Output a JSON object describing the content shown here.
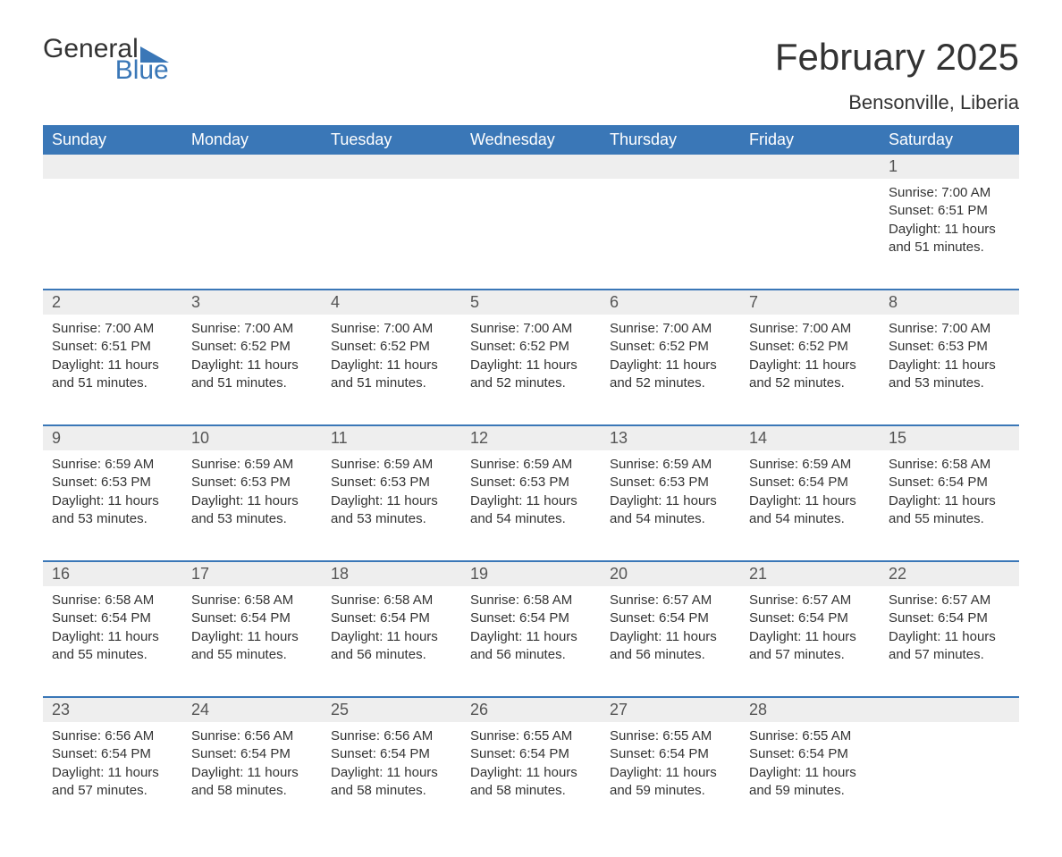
{
  "logo": {
    "word1": "General",
    "word2": "Blue"
  },
  "title": "February 2025",
  "location": "Bensonville, Liberia",
  "colors": {
    "header_bg": "#3a77b7",
    "header_text": "#ffffff",
    "daynum_bg": "#eeeeee",
    "text": "#333333",
    "logo_blue": "#3a77b7"
  },
  "typography": {
    "title_fontsize_pt": 32,
    "location_fontsize_pt": 16,
    "dayheader_fontsize_pt": 14,
    "daynum_fontsize_pt": 14,
    "body_fontsize_pt": 11
  },
  "layout": {
    "columns": 7,
    "week_border_color": "#3a77b7"
  },
  "day_headers": [
    "Sunday",
    "Monday",
    "Tuesday",
    "Wednesday",
    "Thursday",
    "Friday",
    "Saturday"
  ],
  "weeks": [
    {
      "days": [
        {
          "num": "",
          "lines": [
            "",
            "",
            "",
            ""
          ]
        },
        {
          "num": "",
          "lines": [
            "",
            "",
            "",
            ""
          ]
        },
        {
          "num": "",
          "lines": [
            "",
            "",
            "",
            ""
          ]
        },
        {
          "num": "",
          "lines": [
            "",
            "",
            "",
            ""
          ]
        },
        {
          "num": "",
          "lines": [
            "",
            "",
            "",
            ""
          ]
        },
        {
          "num": "",
          "lines": [
            "",
            "",
            "",
            ""
          ]
        },
        {
          "num": "1",
          "lines": [
            "Sunrise: 7:00 AM",
            "Sunset: 6:51 PM",
            "Daylight: 11 hours",
            "and 51 minutes."
          ]
        }
      ]
    },
    {
      "days": [
        {
          "num": "2",
          "lines": [
            "Sunrise: 7:00 AM",
            "Sunset: 6:51 PM",
            "Daylight: 11 hours",
            "and 51 minutes."
          ]
        },
        {
          "num": "3",
          "lines": [
            "Sunrise: 7:00 AM",
            "Sunset: 6:52 PM",
            "Daylight: 11 hours",
            "and 51 minutes."
          ]
        },
        {
          "num": "4",
          "lines": [
            "Sunrise: 7:00 AM",
            "Sunset: 6:52 PM",
            "Daylight: 11 hours",
            "and 51 minutes."
          ]
        },
        {
          "num": "5",
          "lines": [
            "Sunrise: 7:00 AM",
            "Sunset: 6:52 PM",
            "Daylight: 11 hours",
            "and 52 minutes."
          ]
        },
        {
          "num": "6",
          "lines": [
            "Sunrise: 7:00 AM",
            "Sunset: 6:52 PM",
            "Daylight: 11 hours",
            "and 52 minutes."
          ]
        },
        {
          "num": "7",
          "lines": [
            "Sunrise: 7:00 AM",
            "Sunset: 6:52 PM",
            "Daylight: 11 hours",
            "and 52 minutes."
          ]
        },
        {
          "num": "8",
          "lines": [
            "Sunrise: 7:00 AM",
            "Sunset: 6:53 PM",
            "Daylight: 11 hours",
            "and 53 minutes."
          ]
        }
      ]
    },
    {
      "days": [
        {
          "num": "9",
          "lines": [
            "Sunrise: 6:59 AM",
            "Sunset: 6:53 PM",
            "Daylight: 11 hours",
            "and 53 minutes."
          ]
        },
        {
          "num": "10",
          "lines": [
            "Sunrise: 6:59 AM",
            "Sunset: 6:53 PM",
            "Daylight: 11 hours",
            "and 53 minutes."
          ]
        },
        {
          "num": "11",
          "lines": [
            "Sunrise: 6:59 AM",
            "Sunset: 6:53 PM",
            "Daylight: 11 hours",
            "and 53 minutes."
          ]
        },
        {
          "num": "12",
          "lines": [
            "Sunrise: 6:59 AM",
            "Sunset: 6:53 PM",
            "Daylight: 11 hours",
            "and 54 minutes."
          ]
        },
        {
          "num": "13",
          "lines": [
            "Sunrise: 6:59 AM",
            "Sunset: 6:53 PM",
            "Daylight: 11 hours",
            "and 54 minutes."
          ]
        },
        {
          "num": "14",
          "lines": [
            "Sunrise: 6:59 AM",
            "Sunset: 6:54 PM",
            "Daylight: 11 hours",
            "and 54 minutes."
          ]
        },
        {
          "num": "15",
          "lines": [
            "Sunrise: 6:58 AM",
            "Sunset: 6:54 PM",
            "Daylight: 11 hours",
            "and 55 minutes."
          ]
        }
      ]
    },
    {
      "days": [
        {
          "num": "16",
          "lines": [
            "Sunrise: 6:58 AM",
            "Sunset: 6:54 PM",
            "Daylight: 11 hours",
            "and 55 minutes."
          ]
        },
        {
          "num": "17",
          "lines": [
            "Sunrise: 6:58 AM",
            "Sunset: 6:54 PM",
            "Daylight: 11 hours",
            "and 55 minutes."
          ]
        },
        {
          "num": "18",
          "lines": [
            "Sunrise: 6:58 AM",
            "Sunset: 6:54 PM",
            "Daylight: 11 hours",
            "and 56 minutes."
          ]
        },
        {
          "num": "19",
          "lines": [
            "Sunrise: 6:58 AM",
            "Sunset: 6:54 PM",
            "Daylight: 11 hours",
            "and 56 minutes."
          ]
        },
        {
          "num": "20",
          "lines": [
            "Sunrise: 6:57 AM",
            "Sunset: 6:54 PM",
            "Daylight: 11 hours",
            "and 56 minutes."
          ]
        },
        {
          "num": "21",
          "lines": [
            "Sunrise: 6:57 AM",
            "Sunset: 6:54 PM",
            "Daylight: 11 hours",
            "and 57 minutes."
          ]
        },
        {
          "num": "22",
          "lines": [
            "Sunrise: 6:57 AM",
            "Sunset: 6:54 PM",
            "Daylight: 11 hours",
            "and 57 minutes."
          ]
        }
      ]
    },
    {
      "days": [
        {
          "num": "23",
          "lines": [
            "Sunrise: 6:56 AM",
            "Sunset: 6:54 PM",
            "Daylight: 11 hours",
            "and 57 minutes."
          ]
        },
        {
          "num": "24",
          "lines": [
            "Sunrise: 6:56 AM",
            "Sunset: 6:54 PM",
            "Daylight: 11 hours",
            "and 58 minutes."
          ]
        },
        {
          "num": "25",
          "lines": [
            "Sunrise: 6:56 AM",
            "Sunset: 6:54 PM",
            "Daylight: 11 hours",
            "and 58 minutes."
          ]
        },
        {
          "num": "26",
          "lines": [
            "Sunrise: 6:55 AM",
            "Sunset: 6:54 PM",
            "Daylight: 11 hours",
            "and 58 minutes."
          ]
        },
        {
          "num": "27",
          "lines": [
            "Sunrise: 6:55 AM",
            "Sunset: 6:54 PM",
            "Daylight: 11 hours",
            "and 59 minutes."
          ]
        },
        {
          "num": "28",
          "lines": [
            "Sunrise: 6:55 AM",
            "Sunset: 6:54 PM",
            "Daylight: 11 hours",
            "and 59 minutes."
          ]
        },
        {
          "num": "",
          "lines": [
            "",
            "",
            "",
            ""
          ]
        }
      ]
    }
  ]
}
